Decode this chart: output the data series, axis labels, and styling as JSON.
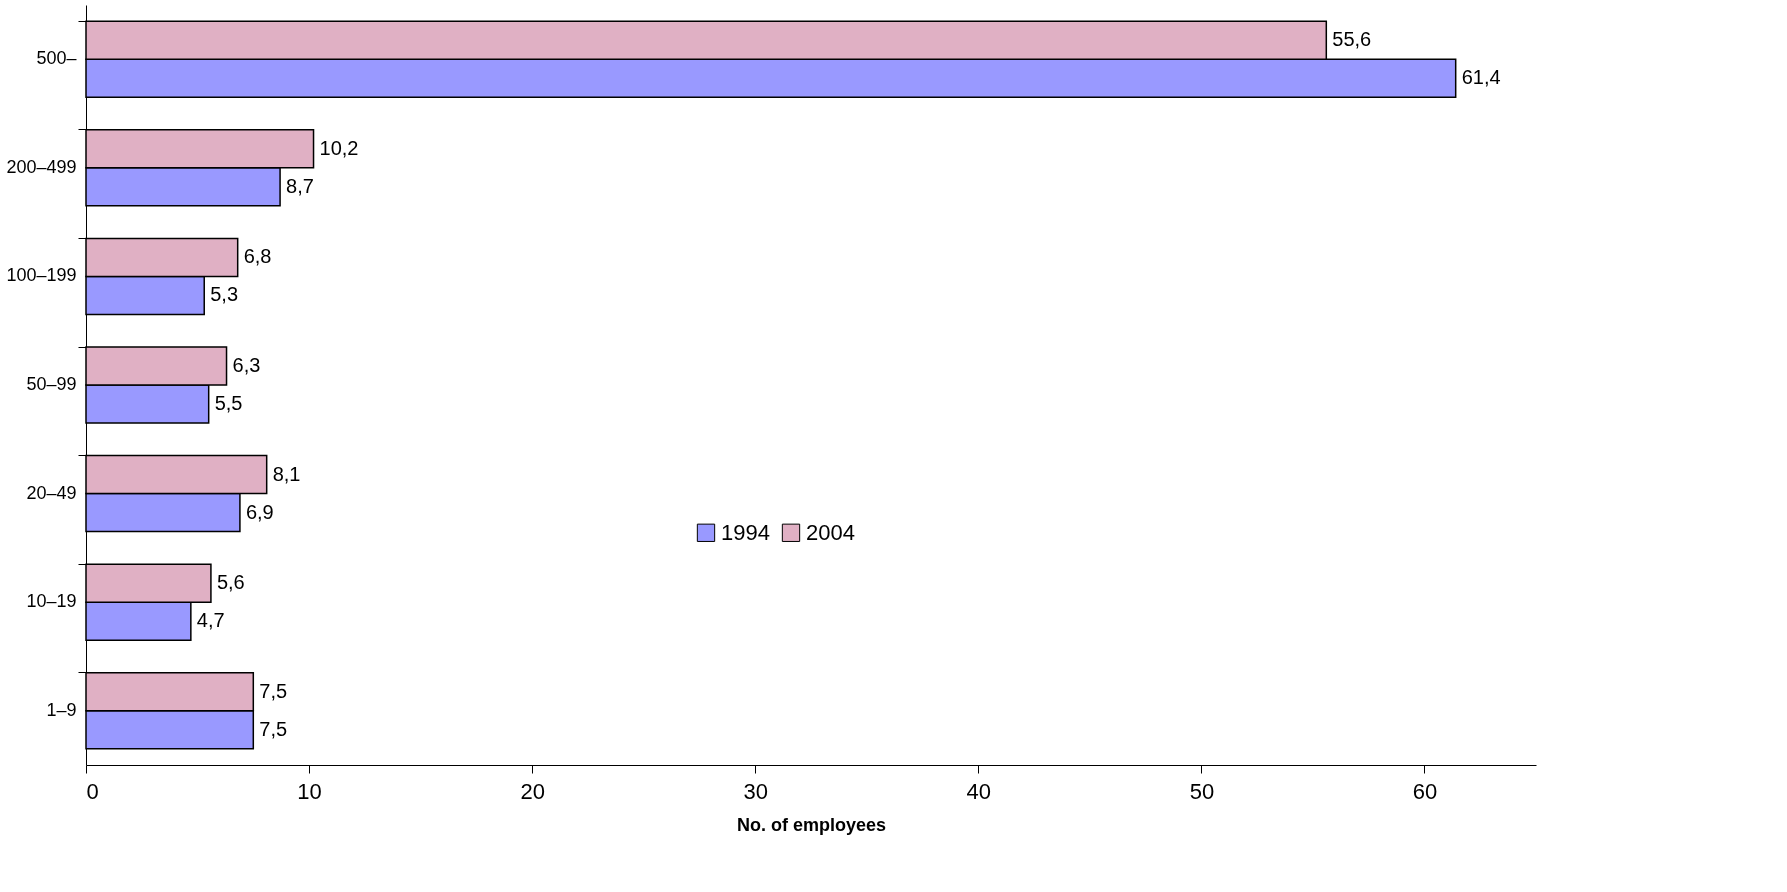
{
  "chart_data": {
    "type": "bar",
    "orientation": "horizontal",
    "xlabel": "No. of employees",
    "categories": [
      "500–",
      "200–499",
      "100–199",
      "50–99",
      "20–49",
      "10–19",
      "1–9"
    ],
    "series": [
      {
        "name": "1994",
        "color": "#9999ff",
        "values": [
          61.4,
          8.7,
          5.3,
          5.5,
          6.9,
          4.7,
          7.5
        ],
        "value_labels": [
          "61,4",
          "8,7",
          "5,3",
          "5,5",
          "6,9",
          "4,7",
          "7,5"
        ]
      },
      {
        "name": "2004",
        "color": "#e0b0c4",
        "values": [
          55.6,
          10.2,
          6.8,
          6.3,
          8.1,
          5.6,
          7.5
        ],
        "value_labels": [
          "55,6",
          "10,2",
          "6,8",
          "6,3",
          "8,1",
          "5,6",
          "7,5"
        ]
      }
    ],
    "xlim": [
      0,
      65
    ],
    "xticks": [
      0,
      10,
      20,
      30,
      40,
      50,
      60
    ],
    "grid": false,
    "legend": "center"
  }
}
